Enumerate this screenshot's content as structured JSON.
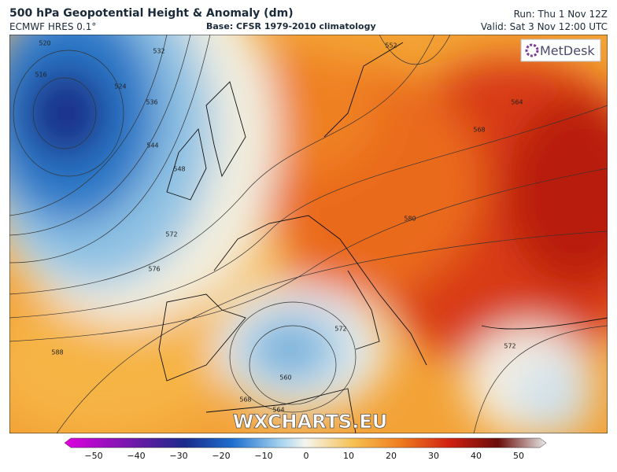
{
  "header": {
    "title": "500 hPa Geopotential Height & Anomaly (dm)",
    "model": "ECMWF HRES 0.1°",
    "base": "Base: CFSR 1979-2010 climatology",
    "run": "Run: Thu 1 Nov 12Z",
    "valid": "Valid: Sat 3 Nov 12:00 UTC"
  },
  "map": {
    "logo": "MetDesk",
    "watermark": "WXCHARTS.EU",
    "contour_labels": [
      "520",
      "516",
      "532",
      "524",
      "536",
      "544",
      "548",
      "552",
      "564",
      "568",
      "572",
      "576",
      "580",
      "588",
      "572",
      "560",
      "568",
      "564",
      "572"
    ]
  },
  "colorbar": {
    "ticks": [
      "−50",
      "−40",
      "−30",
      "−20",
      "−10",
      "0",
      "10",
      "20",
      "30",
      "40",
      "50"
    ]
  }
}
